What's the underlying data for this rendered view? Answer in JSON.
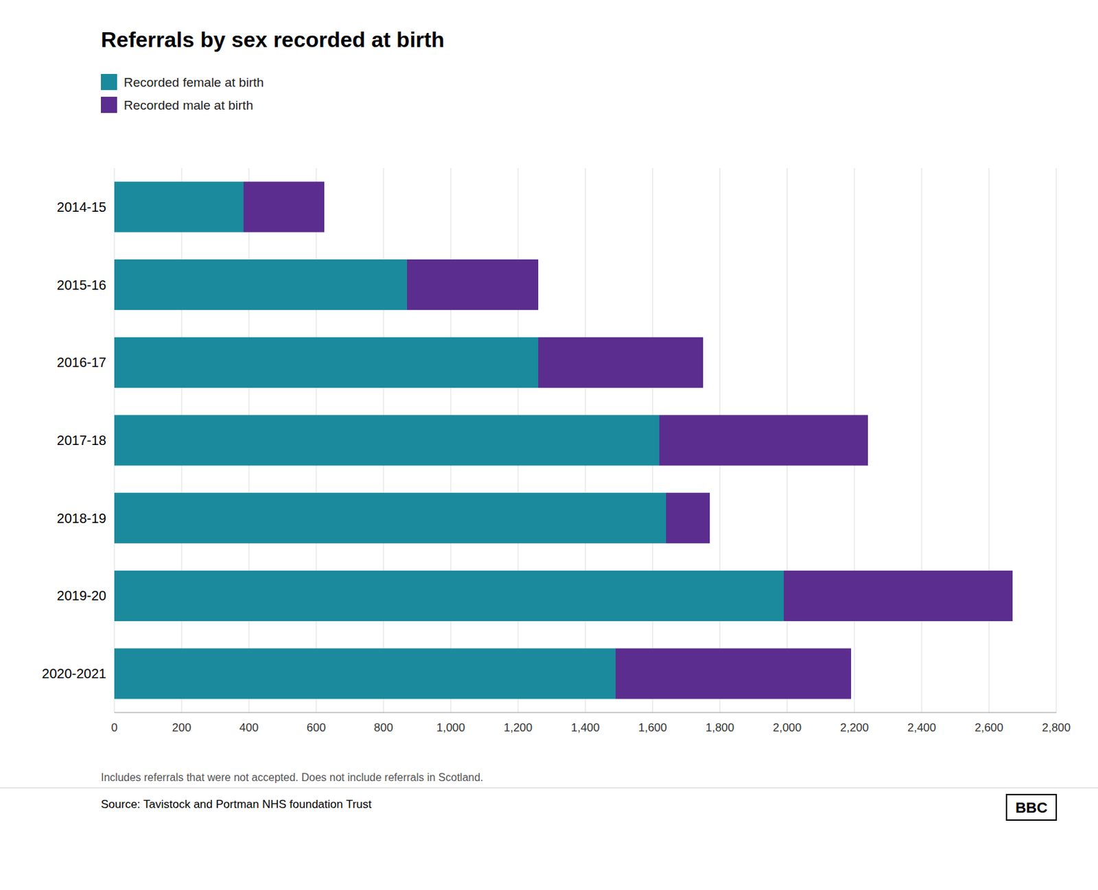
{
  "chart_data": {
    "type": "bar",
    "orientation": "horizontal",
    "stacked": true,
    "title": "Referrals by sex recorded at birth",
    "categories": [
      "2014-15",
      "2015-16",
      "2016-17",
      "2017-18",
      "2018-19",
      "2019-20",
      "2020-2021"
    ],
    "series": [
      {
        "name": "Recorded female at birth",
        "color": "#1a8a9c",
        "values": [
          384,
          870,
          1260,
          1620,
          1640,
          1990,
          1490
        ]
      },
      {
        "name": "Recorded male at birth",
        "color": "#5b2d8e",
        "values": [
          240,
          390,
          490,
          620,
          130,
          680,
          700
        ]
      }
    ],
    "xlim": [
      0,
      2800
    ],
    "xticks": [
      0,
      200,
      400,
      600,
      800,
      {
        "value": 1000,
        "label": "1,000"
      },
      {
        "value": 1200,
        "label": "1,200"
      },
      {
        "value": 1400,
        "label": "1,400"
      },
      {
        "value": 1600,
        "label": "1,600"
      },
      {
        "value": 1800,
        "label": "1,800"
      },
      {
        "value": 2000,
        "label": "2,000"
      },
      {
        "value": 2200,
        "label": "2,200"
      },
      {
        "value": 2400,
        "label": "2,400"
      },
      {
        "value": 2600,
        "label": "2,600"
      },
      {
        "value": 2800,
        "label": "2,800"
      }
    ],
    "grid": true,
    "legend": "upper left",
    "annotations": [
      "Includes referrals that were not accepted. Does not include referrals in Scotland.",
      "Source: Tavistock and Portman NHS foundation Trust",
      "BBC"
    ]
  }
}
